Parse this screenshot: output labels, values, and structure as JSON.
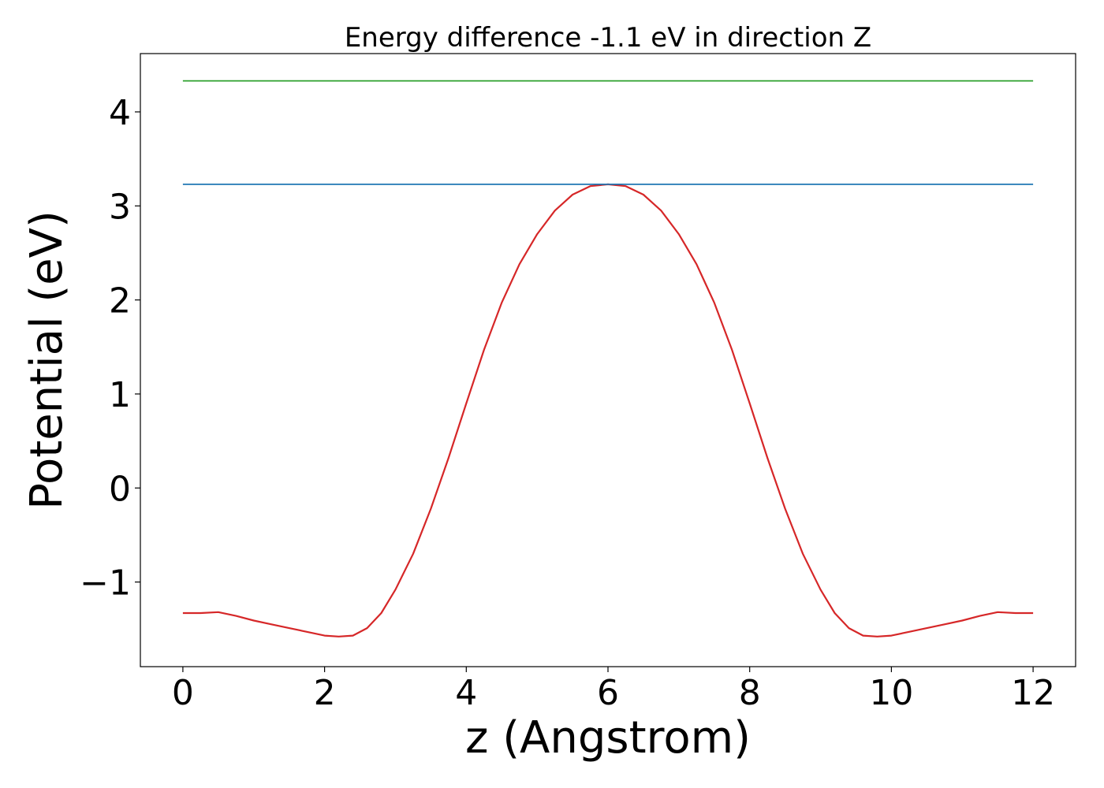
{
  "chart_data": {
    "type": "line",
    "title": "Energy difference -1.1 eV in direction Z",
    "xlabel": "z (Angstrom)",
    "ylabel": "Potential (eV)",
    "xlim": [
      -0.6,
      12.6
    ],
    "ylim": [
      -1.9,
      4.62
    ],
    "x_ticks": [
      0,
      2,
      4,
      6,
      8,
      10,
      12
    ],
    "x_tick_labels": [
      "0",
      "2",
      "4",
      "6",
      "8",
      "10",
      "12"
    ],
    "y_ticks": [
      -1,
      0,
      1,
      2,
      3,
      4
    ],
    "y_tick_labels": [
      "−1",
      "0",
      "1",
      "2",
      "3",
      "4"
    ],
    "grid": false,
    "legend": "none",
    "series": [
      {
        "color": "#d62728",
        "x": [
          0,
          0.25,
          0.5,
          0.75,
          1.0,
          1.25,
          1.5,
          1.75,
          2.0,
          2.2,
          2.4,
          2.6,
          2.8,
          3.0,
          3.25,
          3.5,
          3.75,
          4.0,
          4.25,
          4.5,
          4.75,
          5.0,
          5.25,
          5.5,
          5.75,
          6.0,
          6.25,
          6.5,
          6.75,
          7.0,
          7.25,
          7.5,
          7.75,
          8.0,
          8.25,
          8.5,
          8.75,
          9.0,
          9.2,
          9.4,
          9.6,
          9.8,
          10.0,
          10.25,
          10.5,
          10.75,
          11.0,
          11.25,
          11.5,
          11.75,
          12.0
        ],
        "y": [
          -1.33,
          -1.33,
          -1.32,
          -1.36,
          -1.41,
          -1.45,
          -1.49,
          -1.53,
          -1.57,
          -1.58,
          -1.57,
          -1.49,
          -1.33,
          -1.08,
          -0.7,
          -0.22,
          0.32,
          0.9,
          1.47,
          1.97,
          2.38,
          2.7,
          2.95,
          3.12,
          3.21,
          3.23,
          3.21,
          3.12,
          2.95,
          2.7,
          2.38,
          1.97,
          1.47,
          0.9,
          0.32,
          -0.22,
          -0.7,
          -1.08,
          -1.33,
          -1.49,
          -1.57,
          -1.58,
          -1.57,
          -1.53,
          -1.49,
          -1.45,
          -1.41,
          -1.36,
          -1.32,
          -1.33,
          -1.33
        ]
      },
      {
        "color": "#1f77b4",
        "x": [
          0,
          12
        ],
        "y": [
          3.23,
          3.23
        ]
      },
      {
        "color": "#2ca02c",
        "x": [
          0,
          12
        ],
        "y": [
          4.33,
          4.33
        ]
      }
    ]
  }
}
